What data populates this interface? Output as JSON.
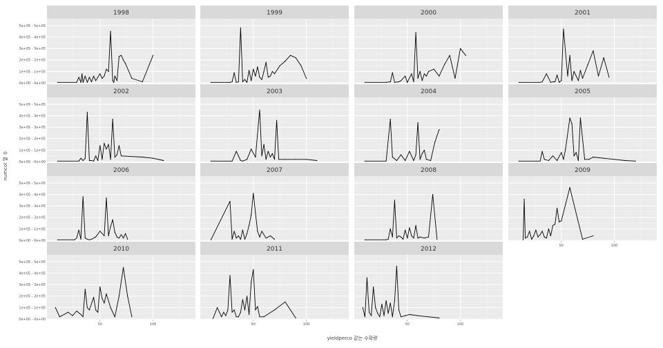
{
  "chart_data": {
    "type": "line",
    "xlabel": "yieldperco 같는 수확량",
    "ylabel": "numcol 열 수",
    "y_tick_labels": [
      "0e+00 - 0e+00",
      "1e+05 - 1e+05",
      "2e+05 - 2e+05",
      "3e+05 - 3e+05",
      "4e+05 - 4e+05",
      "5e+05 - 5e+05"
    ],
    "y_tick_values": [
      0,
      100000,
      200000,
      300000,
      400000,
      500000
    ],
    "x_tick_labels": [
      "50",
      "100"
    ],
    "x_tick_values": [
      50,
      100
    ],
    "xlim": [
      0,
      140
    ],
    "ylim": [
      -5000,
      560000
    ],
    "grid": true,
    "panels": [
      {
        "label": "1998",
        "x": [
          10,
          28,
          30,
          32,
          33,
          34,
          36,
          38,
          40,
          42,
          44,
          46,
          48,
          50,
          52,
          54,
          56,
          58,
          60,
          62,
          63,
          64,
          66,
          68,
          70,
          72,
          74,
          80,
          90,
          100
        ],
        "y": [
          5000,
          5000,
          50000,
          5000,
          80000,
          5000,
          60000,
          5000,
          50000,
          10000,
          60000,
          20000,
          50000,
          80000,
          40000,
          60000,
          120000,
          100000,
          450000,
          20000,
          5000,
          60000,
          20000,
          230000,
          240000,
          200000,
          170000,
          40000,
          10000,
          240000
        ]
      },
      {
        "label": "1999",
        "x": [
          10,
          28,
          30,
          32,
          34,
          36,
          38,
          40,
          42,
          44,
          46,
          48,
          50,
          52,
          54,
          56,
          58,
          60,
          62,
          64,
          66,
          68,
          70,
          75,
          80,
          85,
          90,
          95,
          100
        ],
        "y": [
          5000,
          5000,
          10000,
          90000,
          5000,
          10000,
          480000,
          10000,
          30000,
          5000,
          110000,
          20000,
          120000,
          60000,
          140000,
          50000,
          30000,
          100000,
          180000,
          50000,
          60000,
          100000,
          80000,
          150000,
          190000,
          240000,
          220000,
          150000,
          40000
        ]
      },
      {
        "label": "2000",
        "x": [
          10,
          30,
          34,
          36,
          38,
          42,
          44,
          48,
          50,
          54,
          56,
          58,
          60,
          62,
          64,
          66,
          68,
          70,
          75,
          80,
          85,
          90,
          95,
          100,
          105
        ],
        "y": [
          5000,
          5000,
          10000,
          90000,
          5000,
          10000,
          20000,
          60000,
          5000,
          80000,
          10000,
          440000,
          40000,
          100000,
          20000,
          80000,
          60000,
          100000,
          120000,
          60000,
          160000,
          240000,
          40000,
          300000,
          240000
        ]
      },
      {
        "label": "2001",
        "x": [
          10,
          30,
          32,
          36,
          40,
          42,
          44,
          46,
          48,
          50,
          52,
          56,
          58,
          60,
          62,
          64,
          66,
          68,
          70,
          75,
          80,
          85,
          90,
          95
        ],
        "y": [
          5000,
          5000,
          10000,
          80000,
          5000,
          10000,
          10000,
          70000,
          5000,
          20000,
          470000,
          60000,
          240000,
          20000,
          100000,
          60000,
          20000,
          110000,
          40000,
          160000,
          280000,
          60000,
          220000,
          50000
        ]
      },
      {
        "label": "2002",
        "x": [
          10,
          30,
          32,
          34,
          36,
          38,
          40,
          42,
          44,
          46,
          48,
          50,
          52,
          54,
          56,
          58,
          60,
          62,
          64,
          66,
          68,
          70,
          90,
          100,
          110
        ],
        "y": [
          5000,
          5000,
          30000,
          10000,
          30000,
          430000,
          10000,
          10000,
          5000,
          50000,
          10000,
          140000,
          20000,
          160000,
          110000,
          150000,
          20000,
          370000,
          40000,
          60000,
          140000,
          50000,
          40000,
          30000,
          10000
        ]
      },
      {
        "label": "2003",
        "x": [
          10,
          30,
          34,
          38,
          40,
          44,
          48,
          52,
          56,
          58,
          60,
          62,
          64,
          66,
          68,
          70,
          72,
          74,
          80,
          90,
          100,
          110
        ],
        "y": [
          5000,
          5000,
          90000,
          10000,
          5000,
          20000,
          110000,
          40000,
          450000,
          50000,
          150000,
          20000,
          90000,
          40000,
          70000,
          20000,
          360000,
          20000,
          20000,
          20000,
          20000,
          10000
        ]
      },
      {
        "label": "2004",
        "x": [
          10,
          30,
          34,
          36,
          40,
          44,
          48,
          52,
          56,
          58,
          60,
          62,
          64,
          66,
          68,
          72,
          76,
          80
        ],
        "y": [
          5000,
          5000,
          370000,
          40000,
          10000,
          60000,
          10000,
          90000,
          10000,
          60000,
          340000,
          20000,
          70000,
          100000,
          20000,
          10000,
          170000,
          280000
        ]
      },
      {
        "label": "2005",
        "x": [
          10,
          30,
          32,
          34,
          38,
          42,
          46,
          50,
          52,
          54,
          58,
          60,
          62,
          64,
          66,
          68,
          72,
          76,
          80,
          90,
          100,
          110,
          120
        ],
        "y": [
          5000,
          5000,
          90000,
          20000,
          10000,
          50000,
          10000,
          80000,
          20000,
          110000,
          380000,
          330000,
          50000,
          80000,
          10000,
          380000,
          20000,
          20000,
          40000,
          30000,
          20000,
          10000,
          5000
        ]
      },
      {
        "label": "2006",
        "x": [
          10,
          26,
          28,
          30,
          32,
          34,
          36,
          38,
          40,
          42,
          46,
          50,
          54,
          56,
          58,
          60,
          62,
          64,
          66,
          68,
          70,
          72,
          74,
          76
        ],
        "y": [
          5000,
          5000,
          20000,
          90000,
          10000,
          380000,
          20000,
          10000,
          5000,
          10000,
          30000,
          80000,
          40000,
          370000,
          40000,
          120000,
          180000,
          70000,
          30000,
          20000,
          50000,
          20000,
          60000,
          10000
        ]
      },
      {
        "label": "2007",
        "x": [
          10,
          28,
          30,
          32,
          34,
          36,
          38,
          40,
          42,
          44,
          46,
          48,
          50,
          52,
          54,
          56,
          58,
          62,
          66,
          70
        ],
        "y": [
          5000,
          340000,
          10000,
          80000,
          20000,
          40000,
          10000,
          90000,
          10000,
          60000,
          130000,
          220000,
          410000,
          240000,
          80000,
          30000,
          80000,
          20000,
          40000,
          10000
        ]
      },
      {
        "label": "2008",
        "x": [
          10,
          30,
          32,
          34,
          36,
          38,
          40,
          42,
          44,
          46,
          48,
          50,
          52,
          54,
          56,
          58,
          60,
          62,
          66,
          70,
          74,
          78
        ],
        "y": [
          5000,
          5000,
          10000,
          100000,
          30000,
          350000,
          20000,
          40000,
          30000,
          10000,
          90000,
          20000,
          110000,
          40000,
          20000,
          130000,
          20000,
          30000,
          20000,
          30000,
          400000,
          10000
        ]
      },
      {
        "label": "2009",
        "x": [
          14,
          15,
          16,
          18,
          20,
          22,
          24,
          26,
          28,
          30,
          32,
          34,
          36,
          38,
          40,
          42,
          44,
          46,
          48,
          50,
          58,
          70,
          80
        ],
        "y": [
          5000,
          360000,
          20000,
          30000,
          80000,
          10000,
          40000,
          90000,
          30000,
          50000,
          80000,
          30000,
          20000,
          100000,
          40000,
          130000,
          140000,
          280000,
          160000,
          170000,
          460000,
          10000,
          40000
        ]
      },
      {
        "label": "2010",
        "x": [
          8,
          12,
          16,
          20,
          24,
          28,
          32,
          34,
          36,
          38,
          40,
          44,
          46,
          48,
          50,
          52,
          54,
          56,
          60,
          64,
          68,
          72,
          76,
          80
        ],
        "y": [
          100000,
          20000,
          40000,
          60000,
          30000,
          70000,
          40000,
          20000,
          260000,
          100000,
          80000,
          190000,
          80000,
          60000,
          280000,
          180000,
          140000,
          220000,
          100000,
          20000,
          200000,
          450000,
          200000,
          20000
        ]
      },
      {
        "label": "2011",
        "x": [
          12,
          16,
          20,
          22,
          24,
          26,
          28,
          30,
          32,
          34,
          36,
          38,
          40,
          42,
          44,
          46,
          48,
          50,
          52,
          54,
          56,
          60,
          70,
          80,
          90
        ],
        "y": [
          5000,
          100000,
          20000,
          60000,
          30000,
          80000,
          380000,
          60000,
          80000,
          20000,
          20000,
          60000,
          170000,
          80000,
          200000,
          40000,
          320000,
          430000,
          80000,
          110000,
          20000,
          20000,
          80000,
          150000,
          10000
        ]
      },
      {
        "label": "2012",
        "x": [
          8,
          10,
          12,
          14,
          16,
          18,
          20,
          22,
          24,
          26,
          28,
          30,
          32,
          34,
          36,
          38,
          40,
          42,
          44,
          48,
          52,
          60,
          70,
          80
        ],
        "y": [
          100000,
          20000,
          360000,
          60000,
          30000,
          280000,
          100000,
          50000,
          20000,
          130000,
          30000,
          160000,
          50000,
          140000,
          20000,
          160000,
          460000,
          80000,
          20000,
          30000,
          40000,
          30000,
          20000,
          10000
        ]
      }
    ]
  }
}
